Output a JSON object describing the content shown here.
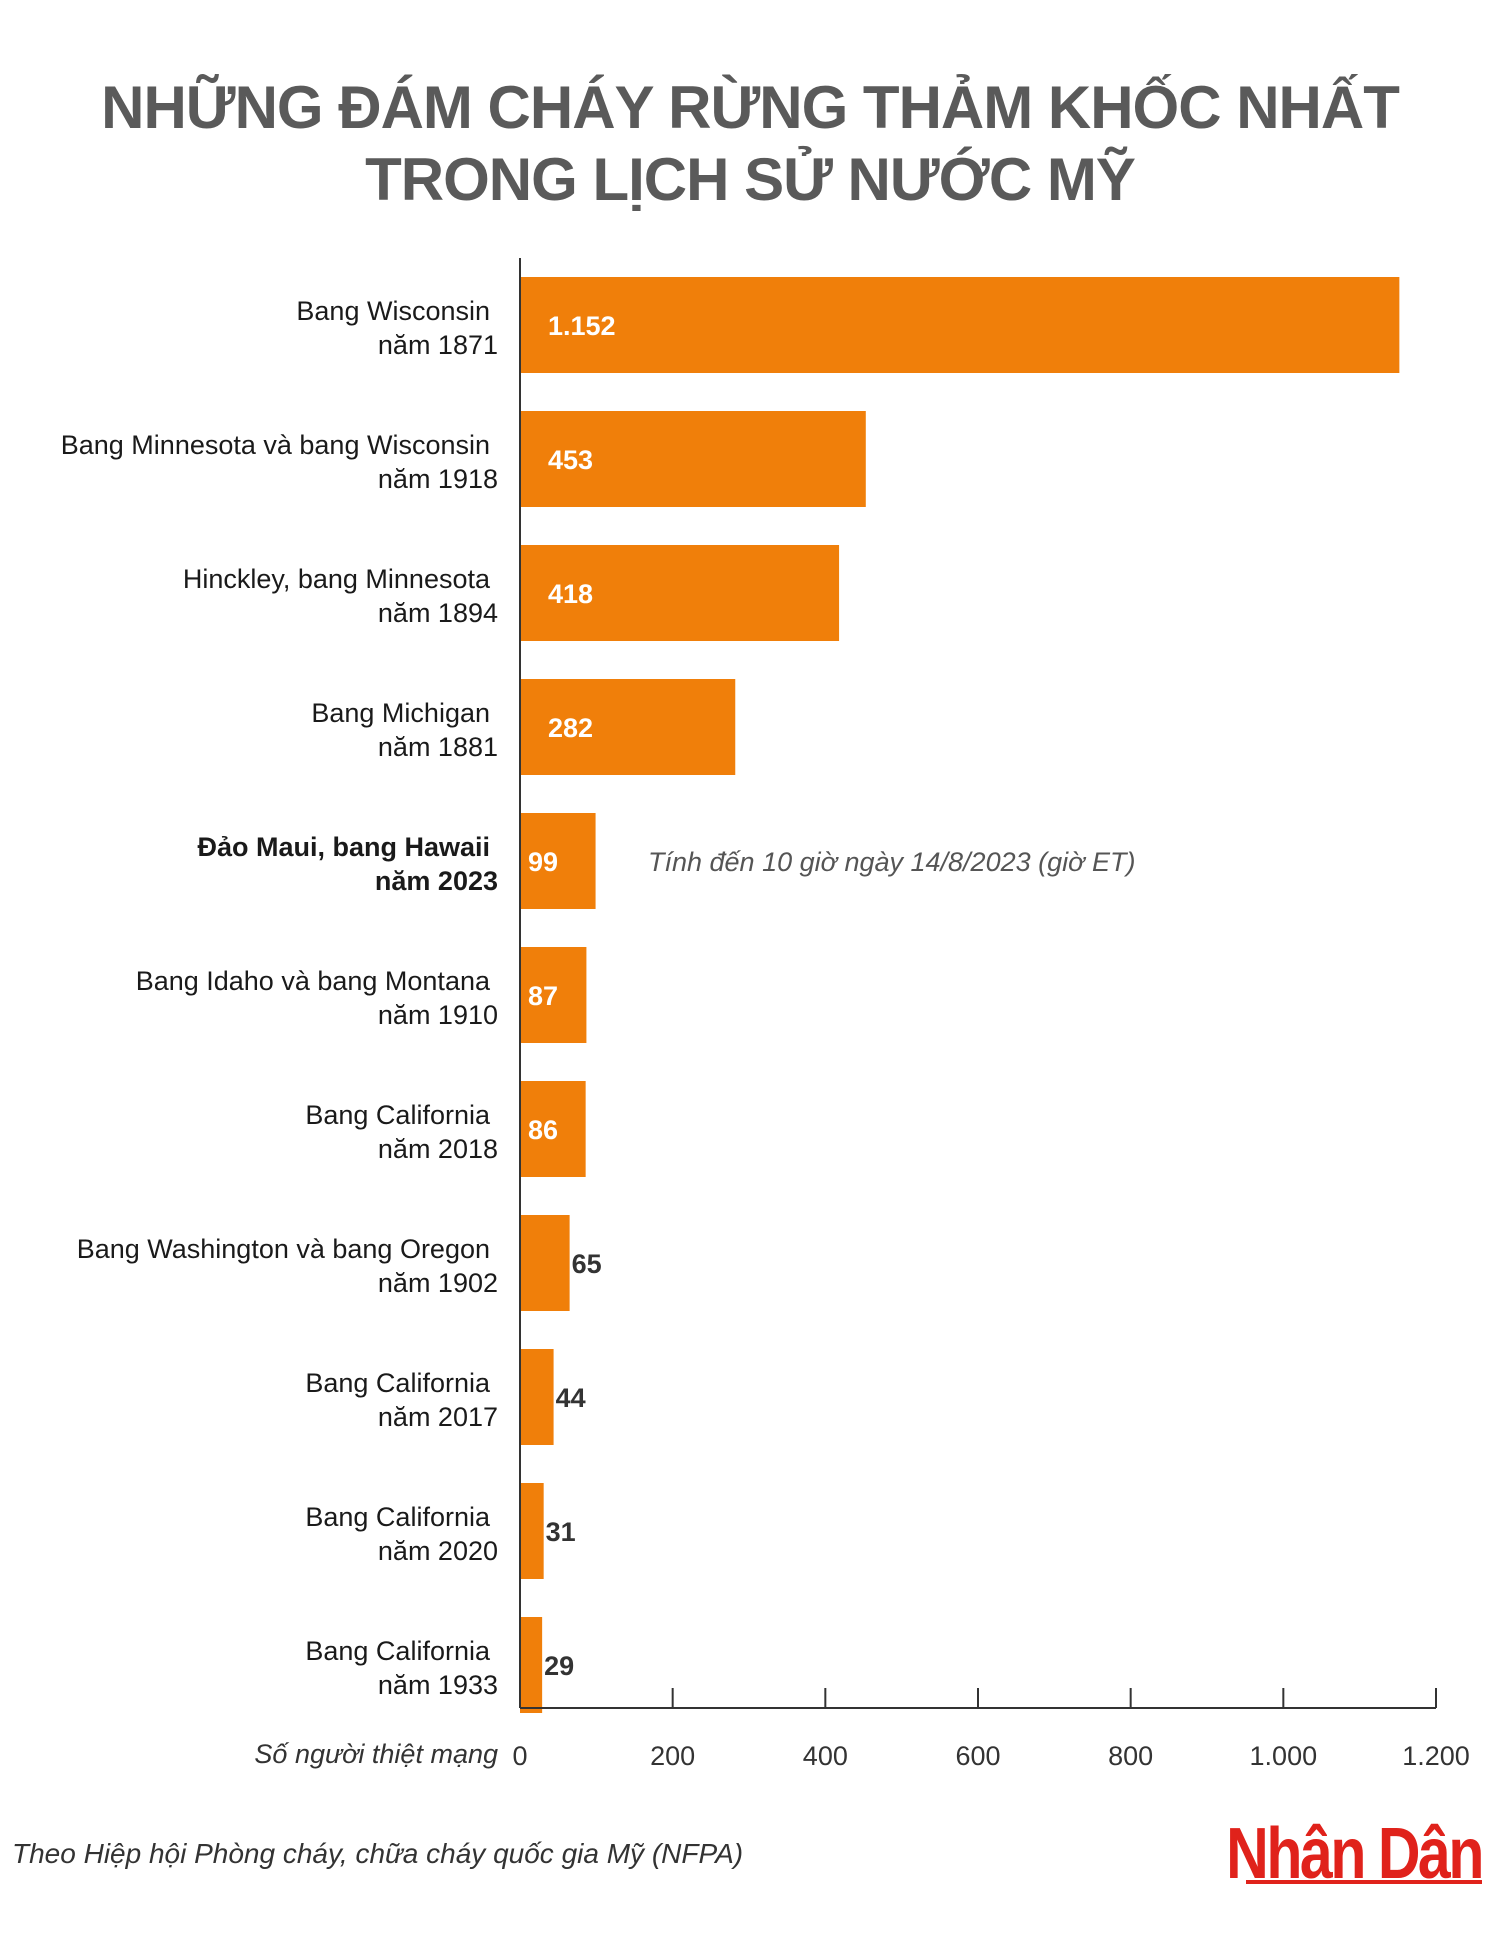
{
  "title": {
    "line1": "NHỮNG ĐÁM CHÁY RỪNG THẢM KHỐC NHẤT",
    "line2": "TRONG LỊCH SỬ NƯỚC MỸ"
  },
  "source": "Theo Hiệp hội Phòng cháy, chữa cháy quốc gia Mỹ (NFPA)",
  "logo": "Nhân Dân",
  "colors": {
    "bar": "#f07f0a",
    "title": "#5a5a5a",
    "logo": "#e0221b"
  },
  "chart_data": {
    "type": "bar",
    "orientation": "horizontal",
    "categories": [
      [
        "Bang Wisconsin",
        "năm 1871"
      ],
      [
        "Bang Minnesota và bang Wisconsin",
        "năm 1918"
      ],
      [
        "Hinckley, bang Minnesota",
        "năm 1894"
      ],
      [
        "Bang Michigan",
        "năm 1881"
      ],
      [
        "Đảo Maui, bang Hawaii",
        "năm 2023"
      ],
      [
        "Bang Idaho và bang Montana",
        "năm 1910"
      ],
      [
        "Bang California",
        "năm 2018"
      ],
      [
        "Bang Washington và bang Oregon",
        "năm 1902"
      ],
      [
        "Bang California",
        "năm 2017"
      ],
      [
        "Bang California",
        "năm 2020"
      ],
      [
        "Bang California",
        "năm 1933"
      ]
    ],
    "values": [
      1152,
      453,
      418,
      282,
      99,
      87,
      86,
      65,
      44,
      31,
      29
    ],
    "value_labels": [
      "1.152",
      "453",
      "418",
      "282",
      "99",
      "87",
      "86",
      "65",
      "44",
      "31",
      "29"
    ],
    "highlight_index": 4,
    "annotation": {
      "index": 4,
      "text": "Tính đến 10 giờ ngày 14/8/2023 (giờ ET)"
    },
    "xlabel": "Số người thiệt mạng",
    "xlim": [
      0,
      1200
    ],
    "xticks": [
      0,
      200,
      400,
      600,
      800,
      1000,
      1200
    ],
    "xtick_labels": [
      "0",
      "200",
      "400",
      "600",
      "800",
      "1.000",
      "1.200"
    ],
    "grid": false
  }
}
